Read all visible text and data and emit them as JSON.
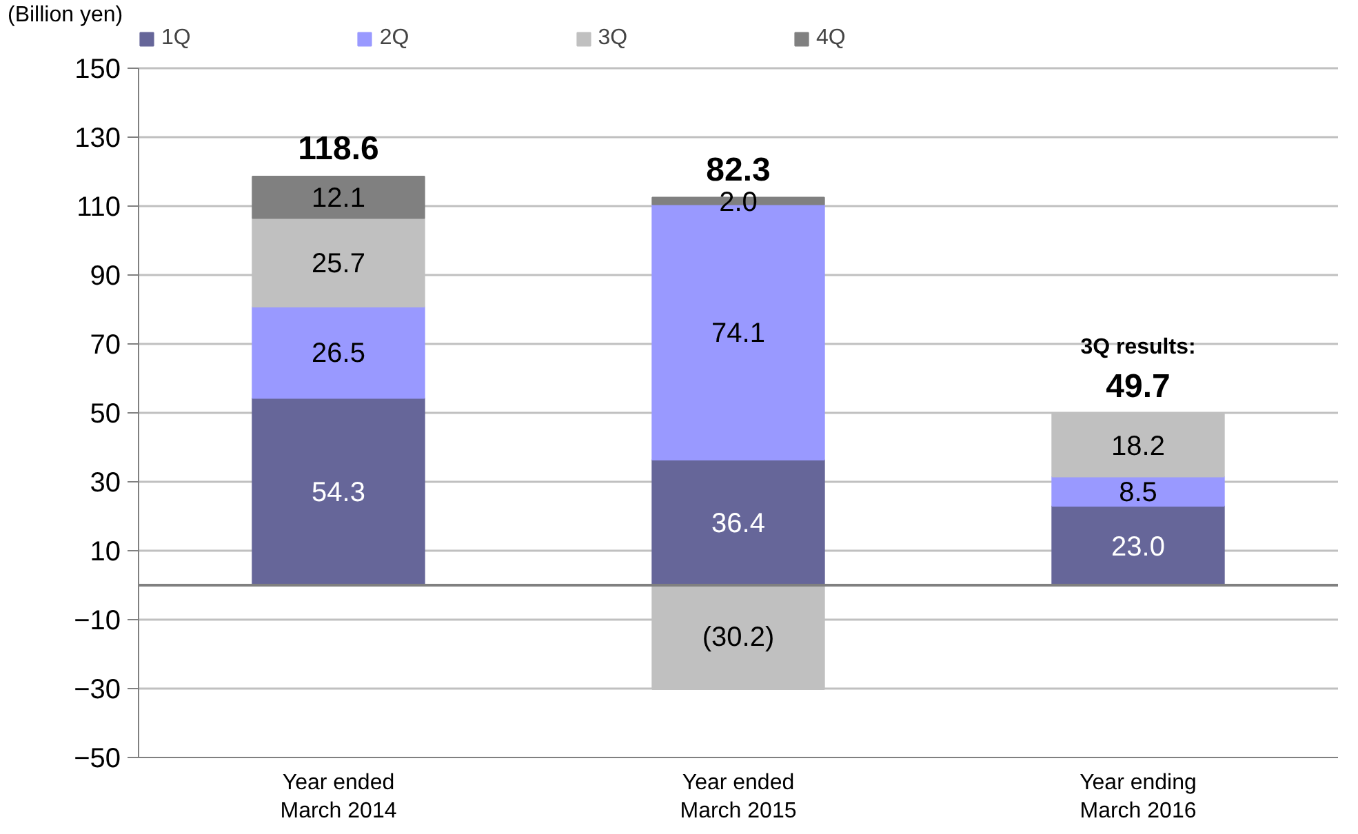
{
  "chart_data": {
    "type": "bar",
    "stacked": true,
    "ylabel": "(Billion yen)",
    "categories": [
      "Year ended\nMarch 2014",
      "Year ended\nMarch 2015",
      "Year ending\nMarch 2016"
    ],
    "series": [
      {
        "name": "1Q",
        "color": "#666699",
        "values": [
          54.3,
          36.4,
          23.0
        ],
        "value_labels": [
          "54.3",
          "36.4",
          "23.0"
        ]
      },
      {
        "name": "2Q",
        "color": "#9999ff",
        "values": [
          26.5,
          74.1,
          8.5
        ],
        "value_labels": [
          "26.5",
          "74.1",
          "8.5"
        ]
      },
      {
        "name": "3Q",
        "color": "#c0c0c0",
        "values": [
          25.7,
          -30.2,
          18.2
        ],
        "value_labels": [
          "25.7",
          "(30.2)",
          "18.2"
        ]
      },
      {
        "name": "4Q",
        "color": "#808080",
        "values": [
          12.1,
          2.0,
          null
        ],
        "value_labels": [
          "12.1",
          "2.0",
          null
        ]
      }
    ],
    "totals": [
      "118.6",
      "82.3",
      "49.7"
    ],
    "annotations": [
      "3Q results:"
    ],
    "ylim": [
      -50,
      150
    ],
    "yticks": [
      -50,
      -30,
      -10,
      10,
      30,
      50,
      70,
      90,
      110,
      130,
      150
    ],
    "grid": "y",
    "legend": "top",
    "ref_lines": [
      {
        "axis": "y",
        "value": 0,
        "label": null,
        "color": "#808080"
      }
    ]
  }
}
